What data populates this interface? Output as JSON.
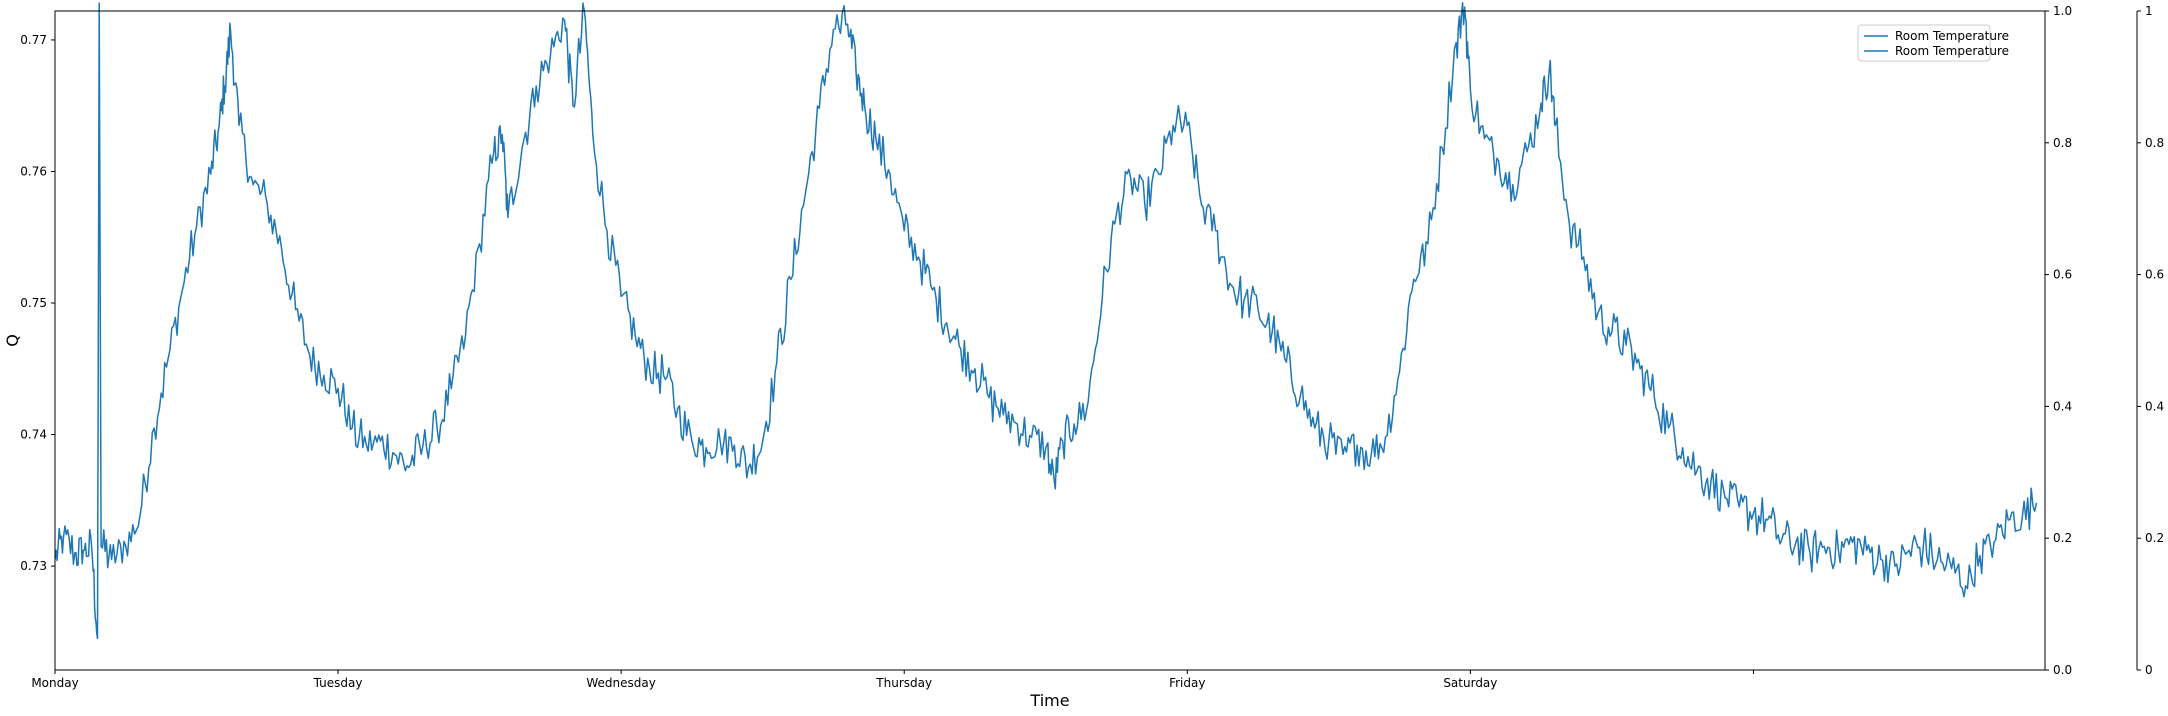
{
  "chart_data": {
    "type": "line",
    "xlabel": "Time",
    "ylabel": "Q",
    "x_ticks": [
      {
        "x": 0,
        "label": "Monday"
      },
      {
        "x": 1,
        "label": "Tuesday"
      },
      {
        "x": 2,
        "label": "Wednesday"
      },
      {
        "x": 3,
        "label": "Thursday"
      },
      {
        "x": 4,
        "label": "Friday"
      },
      {
        "x": 5,
        "label": "Saturday"
      },
      {
        "x": 6,
        "label": ""
      }
    ],
    "xlim": [
      0,
      7.03
    ],
    "ylim": [
      0.7221,
      0.7722
    ],
    "y_ticks": [
      0.73,
      0.74,
      0.75,
      0.76,
      0.77
    ],
    "y_tick_labels": [
      "0.73",
      "0.74",
      "0.75",
      "0.76",
      "0.77"
    ],
    "secondary_y_ticks": [
      "0.0",
      "0.2",
      "0.4",
      "0.6",
      "0.8",
      "1.0"
    ],
    "tertiary_y_ticks": [
      "0",
      "0.2",
      "0.4",
      "0.6",
      "0.8",
      "1"
    ],
    "legend": {
      "placement": "top-right",
      "entries": [
        "Room Temperature",
        "Room Temperature"
      ]
    },
    "grid": false,
    "series": [
      {
        "name": "Room Temperature",
        "color": "#1f77b4",
        "anchors": [
          [
            0.0,
            0.7305
          ],
          [
            0.03,
            0.7322
          ],
          [
            0.07,
            0.731
          ],
          [
            0.1,
            0.7312
          ],
          [
            0.13,
            0.7313
          ],
          [
            0.15,
            0.7245
          ],
          [
            0.156,
            0.7728
          ],
          [
            0.163,
            0.7315
          ],
          [
            0.2,
            0.7305
          ],
          [
            0.25,
            0.7315
          ],
          [
            0.3,
            0.7338
          ],
          [
            0.35,
            0.7405
          ],
          [
            0.4,
            0.7458
          ],
          [
            0.45,
            0.751
          ],
          [
            0.5,
            0.7558
          ],
          [
            0.55,
            0.7598
          ],
          [
            0.58,
            0.7635
          ],
          [
            0.6,
            0.7665
          ],
          [
            0.62,
            0.7708
          ],
          [
            0.65,
            0.7635
          ],
          [
            0.7,
            0.759
          ],
          [
            0.75,
            0.7575
          ],
          [
            0.8,
            0.7542
          ],
          [
            0.85,
            0.7495
          ],
          [
            0.9,
            0.746
          ],
          [
            0.95,
            0.7445
          ],
          [
            1.0,
            0.7435
          ],
          [
            1.05,
            0.7405
          ],
          [
            1.1,
            0.7392
          ],
          [
            1.15,
            0.7395
          ],
          [
            1.2,
            0.7385
          ],
          [
            1.25,
            0.7375
          ],
          [
            1.3,
            0.7392
          ],
          [
            1.35,
            0.7405
          ],
          [
            1.4,
            0.7435
          ],
          [
            1.45,
            0.7475
          ],
          [
            1.5,
            0.7545
          ],
          [
            1.55,
            0.7615
          ],
          [
            1.58,
            0.7628
          ],
          [
            1.6,
            0.7565
          ],
          [
            1.65,
            0.7618
          ],
          [
            1.7,
            0.7665
          ],
          [
            1.75,
            0.7688
          ],
          [
            1.8,
            0.7715
          ],
          [
            1.83,
            0.765
          ],
          [
            1.87,
            0.7722
          ],
          [
            1.9,
            0.7628
          ],
          [
            1.95,
            0.7555
          ],
          [
            2.0,
            0.7505
          ],
          [
            2.05,
            0.7475
          ],
          [
            2.1,
            0.745
          ],
          [
            2.15,
            0.7445
          ],
          [
            2.2,
            0.742
          ],
          [
            2.25,
            0.7395
          ],
          [
            2.3,
            0.739
          ],
          [
            2.35,
            0.7395
          ],
          [
            2.4,
            0.7392
          ],
          [
            2.45,
            0.7375
          ],
          [
            2.5,
            0.7395
          ],
          [
            2.55,
            0.7455
          ],
          [
            2.6,
            0.7518
          ],
          [
            2.65,
            0.7582
          ],
          [
            2.7,
            0.7648
          ],
          [
            2.75,
            0.7708
          ],
          [
            2.8,
            0.7712
          ],
          [
            2.83,
            0.7675
          ],
          [
            2.86,
            0.765
          ],
          [
            2.9,
            0.7625
          ],
          [
            2.95,
            0.7598
          ],
          [
            3.0,
            0.7555
          ],
          [
            3.05,
            0.7535
          ],
          [
            3.1,
            0.751
          ],
          [
            3.15,
            0.7485
          ],
          [
            3.2,
            0.7465
          ],
          [
            3.25,
            0.745
          ],
          [
            3.3,
            0.7428
          ],
          [
            3.35,
            0.7415
          ],
          [
            3.4,
            0.7408
          ],
          [
            3.45,
            0.7398
          ],
          [
            3.5,
            0.739
          ],
          [
            3.53,
            0.7365
          ],
          [
            3.56,
            0.7395
          ],
          [
            3.6,
            0.7408
          ],
          [
            3.65,
            0.7425
          ],
          [
            3.7,
            0.7505
          ],
          [
            3.75,
            0.7568
          ],
          [
            3.8,
            0.7595
          ],
          [
            3.85,
            0.7575
          ],
          [
            3.9,
            0.7598
          ],
          [
            3.95,
            0.7635
          ],
          [
            4.0,
            0.7635
          ],
          [
            4.05,
            0.7575
          ],
          [
            4.1,
            0.7555
          ],
          [
            4.15,
            0.7515
          ],
          [
            4.2,
            0.7502
          ],
          [
            4.25,
            0.7495
          ],
          [
            4.3,
            0.7478
          ],
          [
            4.35,
            0.7455
          ],
          [
            4.4,
            0.743
          ],
          [
            4.45,
            0.7405
          ],
          [
            4.5,
            0.7395
          ],
          [
            4.55,
            0.7385
          ],
          [
            4.6,
            0.7392
          ],
          [
            4.65,
            0.7385
          ],
          [
            4.7,
            0.7398
          ],
          [
            4.75,
            0.7448
          ],
          [
            4.8,
            0.7518
          ],
          [
            4.85,
            0.7545
          ],
          [
            4.9,
            0.7618
          ],
          [
            4.95,
            0.7698
          ],
          [
            4.98,
            0.7725
          ],
          [
            5.0,
            0.7662
          ],
          [
            5.05,
            0.7625
          ],
          [
            5.1,
            0.7608
          ],
          [
            5.15,
            0.759
          ],
          [
            5.2,
            0.7615
          ],
          [
            5.25,
            0.7652
          ],
          [
            5.28,
            0.768
          ],
          [
            5.3,
            0.7635
          ],
          [
            5.35,
            0.756
          ],
          [
            5.4,
            0.7535
          ],
          [
            5.45,
            0.7492
          ],
          [
            5.5,
            0.7478
          ],
          [
            5.55,
            0.7468
          ],
          [
            5.6,
            0.745
          ],
          [
            5.65,
            0.7428
          ],
          [
            5.7,
            0.7405
          ],
          [
            5.75,
            0.739
          ],
          [
            5.8,
            0.7372
          ],
          [
            5.85,
            0.7365
          ],
          [
            5.9,
            0.7352
          ],
          [
            5.95,
            0.7345
          ],
          [
            6.0,
            0.734
          ],
          [
            6.05,
            0.7335
          ],
          [
            6.1,
            0.732
          ],
          [
            6.15,
            0.7318
          ],
          [
            6.2,
            0.731
          ],
          [
            6.25,
            0.7315
          ],
          [
            6.3,
            0.7312
          ],
          [
            6.35,
            0.7318
          ],
          [
            6.4,
            0.7312
          ],
          [
            6.45,
            0.7305
          ],
          [
            6.5,
            0.73
          ],
          [
            6.55,
            0.7312
          ],
          [
            6.6,
            0.7315
          ],
          [
            6.65,
            0.7305
          ],
          [
            6.7,
            0.7298
          ],
          [
            6.75,
            0.7285
          ],
          [
            6.8,
            0.7308
          ],
          [
            6.85,
            0.7318
          ],
          [
            6.9,
            0.7335
          ],
          [
            6.95,
            0.7338
          ],
          [
            7.0,
            0.7348
          ]
        ]
      }
    ]
  }
}
